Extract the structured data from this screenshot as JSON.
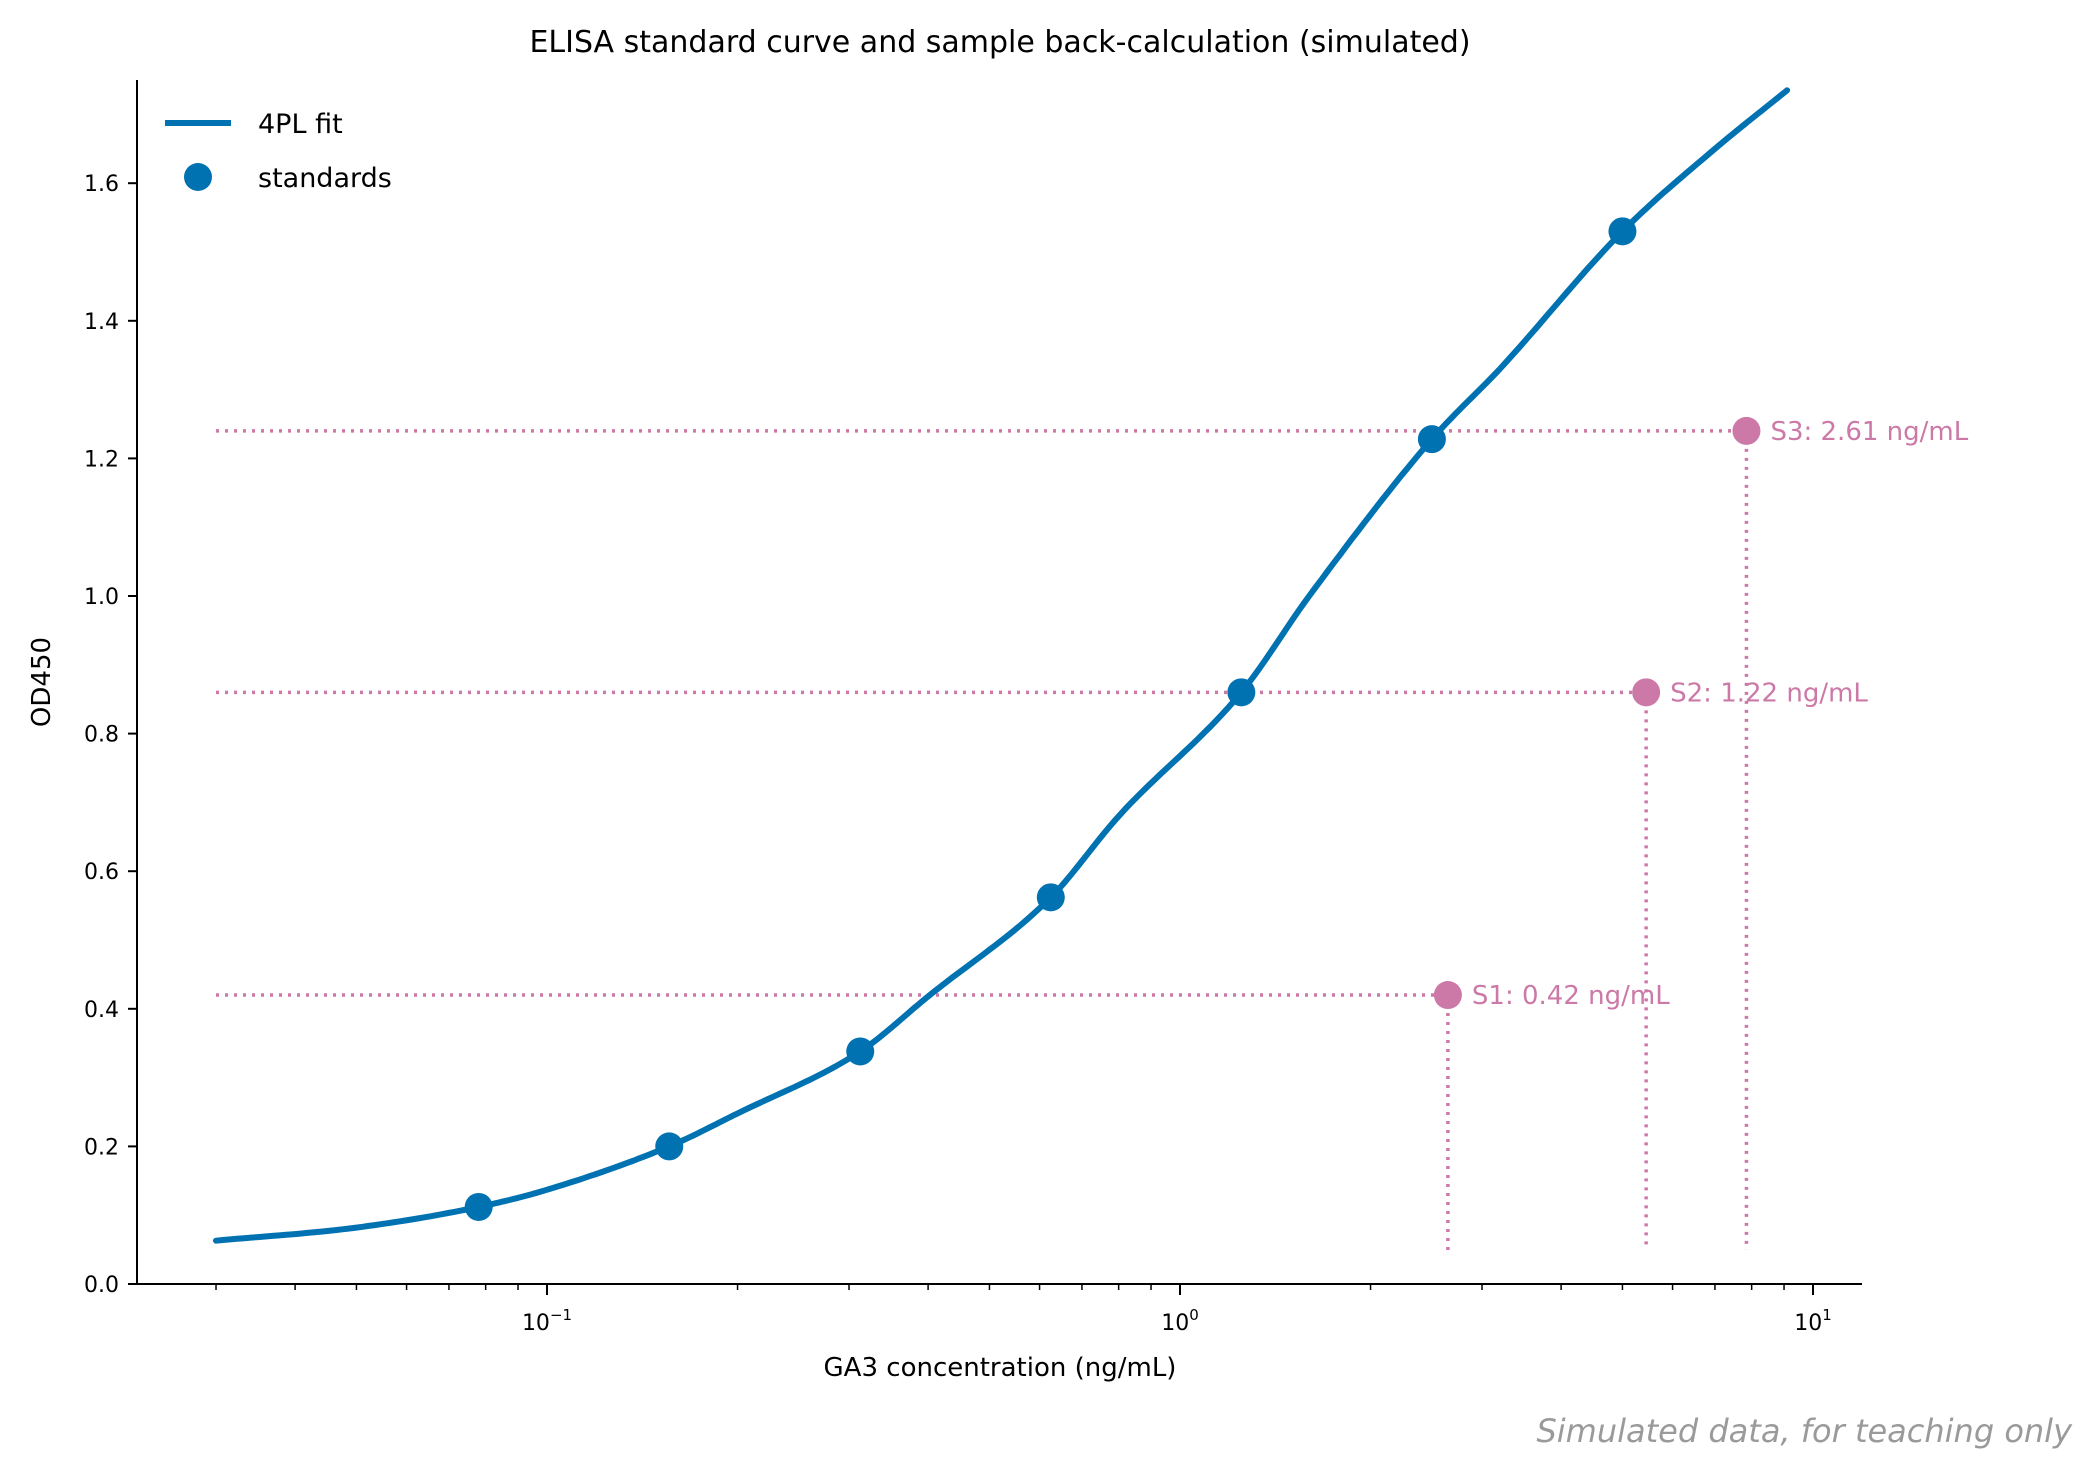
{
  "chart_data": {
    "type": "line",
    "title": "ELISA standard curve and sample back-calculation (simulated)",
    "xlabel": "GA3 concentration (ng/mL)",
    "ylabel": "OD450",
    "x_scale": "log",
    "xlim": [
      0.023,
      12
    ],
    "ylim": [
      0,
      1.75
    ],
    "y_ticks": [
      0.0,
      0.2,
      0.4,
      0.6,
      0.8,
      1.0,
      1.2,
      1.4,
      1.6
    ],
    "y_tick_labels": [
      "0.0",
      "0.2",
      "0.4",
      "0.6",
      "0.8",
      "1.0",
      "1.2",
      "1.4",
      "1.6"
    ],
    "x_ticks": [
      {
        "value": 0.1,
        "base": "10",
        "exp": "−1"
      },
      {
        "value": 1,
        "base": "10",
        "exp": "0"
      },
      {
        "value": 10,
        "base": "10",
        "exp": "1"
      }
    ],
    "grid": false,
    "legend_position": "top-left",
    "legend": [
      {
        "label": "4PL fit",
        "kind": "line"
      },
      {
        "label": "standards",
        "kind": "marker"
      }
    ],
    "fit_curve": {
      "name": "4PL fit",
      "x_range": [
        0.03,
        9.1
      ],
      "x": [
        0.03,
        0.05,
        0.078,
        0.1,
        0.156,
        0.2,
        0.3125,
        0.4,
        0.625,
        0.8,
        1.25,
        1.6,
        2.5,
        3.2,
        5.0,
        7.0,
        9.1
      ],
      "y": [
        0.063,
        0.082,
        0.112,
        0.137,
        0.2,
        0.248,
        0.338,
        0.418,
        0.562,
        0.68,
        0.86,
        1.0,
        1.228,
        1.33,
        1.53,
        1.65,
        1.735
      ]
    },
    "series": [
      {
        "name": "standards",
        "x": [
          0.078,
          0.156,
          0.3125,
          0.625,
          1.25,
          2.5,
          5.0
        ],
        "y": [
          0.112,
          0.2,
          0.338,
          0.562,
          0.86,
          1.228,
          1.53
        ]
      }
    ],
    "samples": [
      {
        "label": "S1: 0.42 ng/mL",
        "x": 2.65,
        "y": 0.42
      },
      {
        "label": "S2: 1.22 ng/mL",
        "x": 5.45,
        "y": 0.86
      },
      {
        "label": "S3: 2.61 ng/mL",
        "x": 7.85,
        "y": 1.24
      }
    ],
    "guide_x_start": 0.03,
    "colors": {
      "fit": "#0072b2",
      "standards": "#0072b2",
      "samples": "#cc79a7"
    }
  },
  "footnote": "Simulated data, for teaching only"
}
